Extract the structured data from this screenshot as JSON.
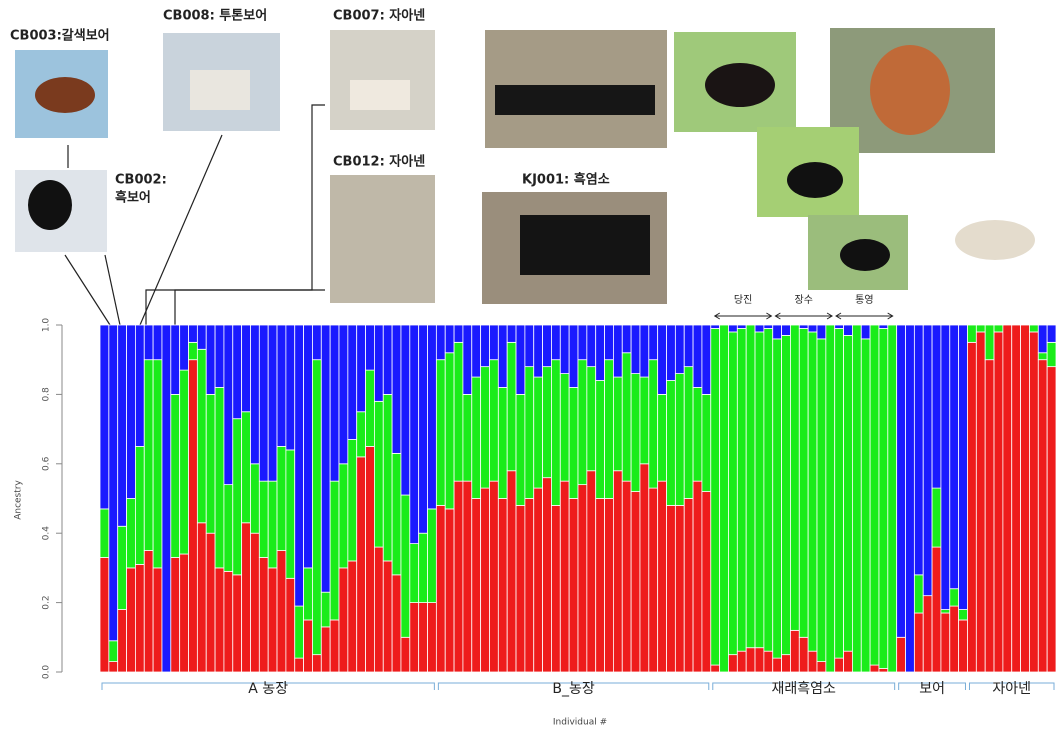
{
  "chart_data": {
    "type": "stacked_bar",
    "ylabel": "Ancestry",
    "xlabel": "Individual #",
    "ylim": [
      0,
      1
    ],
    "yticks": [
      {
        "value": 0,
        "label": "0.0"
      },
      {
        "value": 0.2,
        "label": "0.2"
      },
      {
        "value": 0.4,
        "label": "0.4"
      },
      {
        "value": 0.6,
        "label": "0.6"
      },
      {
        "value": 0.8,
        "label": "0.8"
      },
      {
        "value": 1,
        "label": "1.0"
      }
    ],
    "groups": [
      "A 농장",
      "B_농장",
      "재래흑염소",
      "보어",
      "자아넨"
    ],
    "subgroups": [
      "당진",
      "장수",
      "통영"
    ],
    "captions": [
      "CB003:갈색보어",
      "CB008: 투톤보어",
      "CB007: 자아넨",
      [
        "CB002:",
        "흑보어"
      ],
      "CB012: 자아넨",
      "KJ001: 흑염소"
    ],
    "series": [
      {
        "color": "#ee1c1c",
        "values": [
          0.33,
          0.03,
          0.18,
          0.3,
          0.31,
          0.35,
          0.3,
          0,
          0.33,
          0.34,
          0.9,
          0.43,
          0.4,
          0.3,
          0.29,
          0.28,
          0.43,
          0.4,
          0.33,
          0.3,
          0.35,
          0.27,
          0.04,
          0.15,
          0.05,
          0.13,
          0.15,
          0.3,
          0.32,
          0.62,
          0.65,
          0.36,
          0.32,
          0.28,
          0.1,
          0.2,
          0.2,
          0.2,
          0.48,
          0.47,
          0.55,
          0.55,
          0.5,
          0.53,
          0.55,
          0.5,
          0.58,
          0.48,
          0.5,
          0.53,
          0.56,
          0.48,
          0.55,
          0.5,
          0.54,
          0.58,
          0.5,
          0.5,
          0.58,
          0.55,
          0.52,
          0.6,
          0.53,
          0.55,
          0.48,
          0.48,
          0.5,
          0.55,
          0.52,
          0.02,
          0,
          0.05,
          0.06,
          0.07,
          0.07,
          0.06,
          0.04,
          0.05,
          0.12,
          0.1,
          0.06,
          0.03,
          0,
          0.04,
          0.06,
          0,
          0,
          0.02,
          0.01,
          0,
          0.1,
          0,
          0.17,
          0.22,
          0.36,
          0.17,
          0.19,
          0.15,
          0.95,
          0.98,
          0.9,
          0.98,
          1,
          1,
          1,
          0.98,
          0.9,
          0.88
        ]
      },
      {
        "color": "#1aec1a",
        "values": [
          0.14,
          0.06,
          0.24,
          0.2,
          0.34,
          0.55,
          0.6,
          0,
          0.47,
          0.53,
          0.05,
          0.5,
          0.4,
          0.52,
          0.25,
          0.45,
          0.32,
          0.2,
          0.22,
          0.25,
          0.3,
          0.37,
          0.15,
          0.15,
          0.85,
          0.1,
          0.4,
          0.3,
          0.35,
          0.13,
          0.22,
          0.42,
          0.48,
          0.35,
          0.41,
          0.17,
          0.2,
          0.27,
          0.42,
          0.45,
          0.4,
          0.25,
          0.35,
          0.35,
          0.35,
          0.32,
          0.37,
          0.32,
          0.38,
          0.32,
          0.32,
          0.42,
          0.31,
          0.32,
          0.36,
          0.3,
          0.34,
          0.4,
          0.27,
          0.37,
          0.34,
          0.25,
          0.37,
          0.25,
          0.36,
          0.38,
          0.38,
          0.27,
          0.28,
          0.97,
          1,
          0.93,
          0.93,
          0.93,
          0.91,
          0.93,
          0.92,
          0.92,
          0.88,
          0.89,
          0.92,
          0.93,
          1,
          0.95,
          0.91,
          1,
          0.96,
          0.98,
          0.98,
          1,
          0,
          0,
          0.11,
          0,
          0.17,
          0.01,
          0.05,
          0.03,
          0.05,
          0.02,
          0.1,
          0.02,
          0,
          0,
          0,
          0.02,
          0.02,
          0.07
        ]
      },
      {
        "color": "#1a1aff",
        "values": [
          0.53,
          0.91,
          0.58,
          0.5,
          0.35,
          0.1,
          0.1,
          1,
          0.2,
          0.13,
          0.05,
          0.07,
          0.2,
          0.18,
          0.46,
          0.27,
          0.25,
          0.4,
          0.45,
          0.45,
          0.35,
          0.36,
          0.81,
          0.7,
          0.1,
          0.77,
          0.45,
          0.4,
          0.33,
          0.25,
          0.13,
          0.22,
          0.2,
          0.37,
          0.49,
          0.63,
          0.6,
          0.53,
          0.1,
          0.08,
          0.05,
          0.2,
          0.15,
          0.12,
          0.1,
          0.18,
          0.05,
          0.2,
          0.12,
          0.15,
          0.12,
          0.1,
          0.14,
          0.18,
          0.1,
          0.12,
          0.16,
          0.1,
          0.15,
          0.08,
          0.14,
          0.15,
          0.1,
          0.2,
          0.16,
          0.14,
          0.12,
          0.18,
          0.2,
          0.01,
          0,
          0.02,
          0.01,
          0,
          0.02,
          0.01,
          0.04,
          0.03,
          0,
          0.01,
          0.02,
          0.04,
          0,
          0.01,
          0.03,
          0,
          0.04,
          0,
          0.01,
          0,
          0.9,
          1,
          0.72,
          0.78,
          0.47,
          0.82,
          0.76,
          0.82,
          0,
          0,
          0,
          0,
          0,
          0,
          0,
          0,
          0.08,
          0.05
        ]
      }
    ]
  }
}
